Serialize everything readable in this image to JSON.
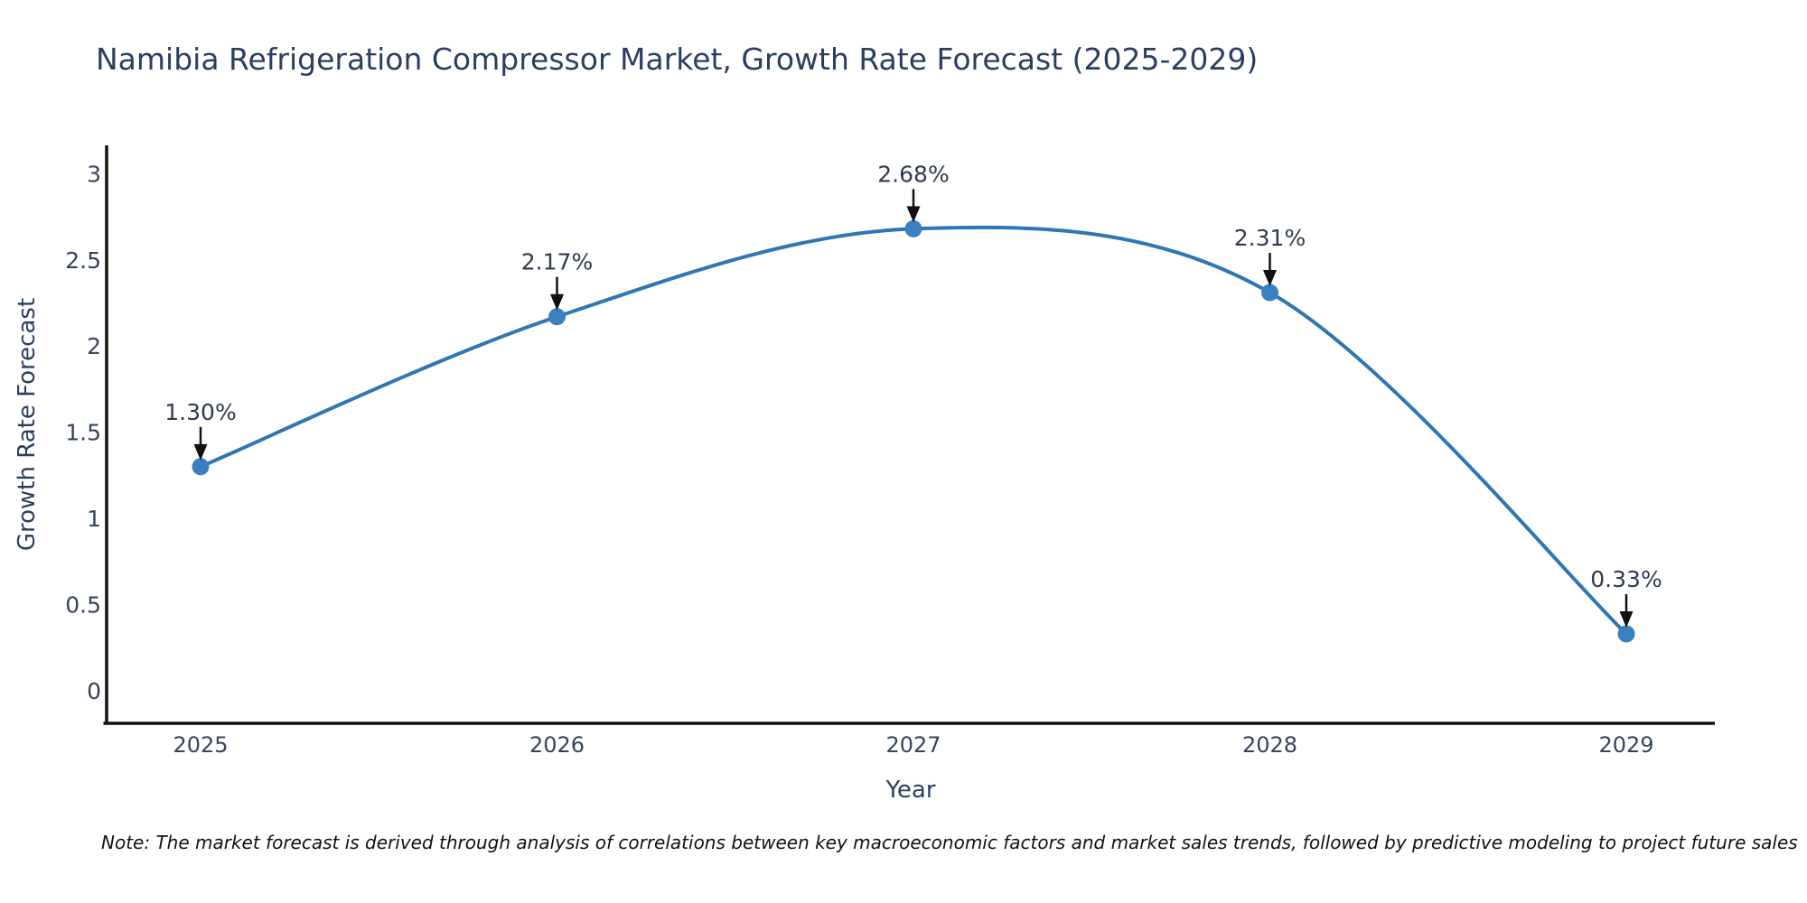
{
  "title": "Namibia Refrigeration Compressor Market, Growth Rate Forecast (2025-2029)",
  "note": "Note: The market forecast is derived through analysis of correlations between key macroeconomic factors and market sales trends, followed by predictive modeling to project future sales",
  "chart_data": {
    "type": "line",
    "line_shape": "spline",
    "x": [
      "2025",
      "2026",
      "2027",
      "2028",
      "2029"
    ],
    "series": [
      {
        "name": "Growth Rate Forecast",
        "values": [
          1.3,
          2.17,
          2.68,
          2.31,
          0.33
        ]
      }
    ],
    "point_labels": [
      "1.30%",
      "2.17%",
      "2.68%",
      "2.31%",
      "0.33%"
    ],
    "title": "Namibia Refrigeration Compressor Market, Growth Rate Forecast (2025-2029)",
    "xlabel": "Year",
    "ylabel": "Growth Rate Forecast",
    "yticks": [
      0,
      0.5,
      1,
      1.5,
      2,
      2.5,
      3
    ],
    "ylim": [
      0,
      3
    ],
    "grid": false,
    "legend": "none",
    "annotations": "value labels with black arrows pointing to each data point",
    "colors": {
      "line": "#2f76b2",
      "marker": "#3a80c1",
      "axis": "#111111",
      "tick_label": "#36455c",
      "title_text": "#2a3f5f",
      "annotation_text": "#2f3b4e",
      "arrow": "#111111",
      "background": "#ffffff"
    }
  }
}
